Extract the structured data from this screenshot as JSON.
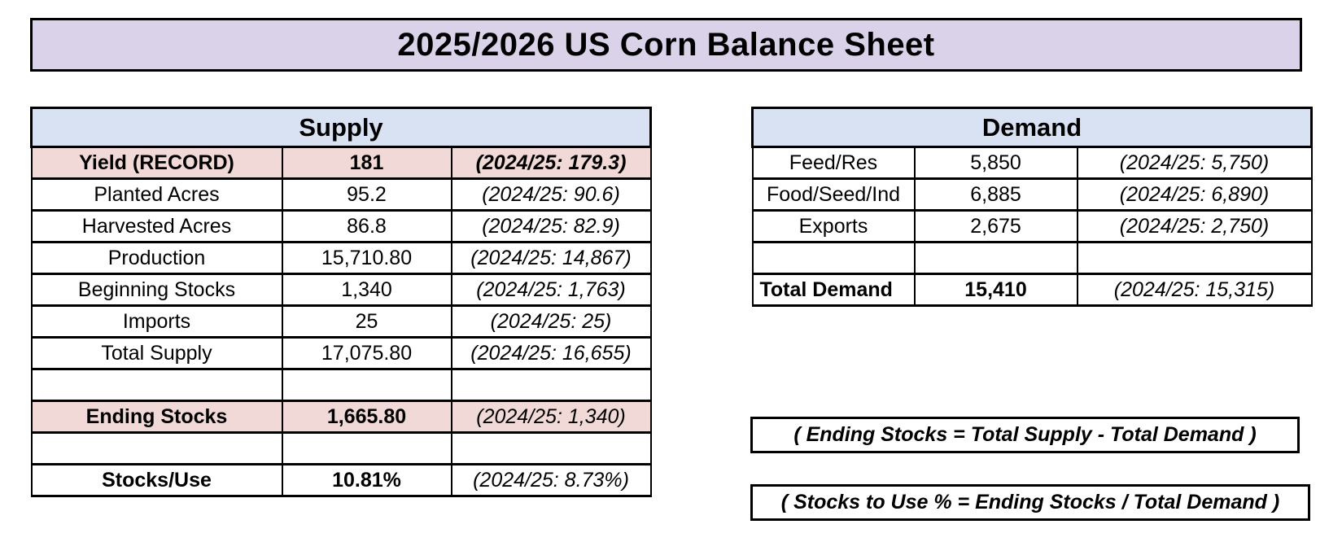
{
  "title": "2025/2026 US Corn Balance Sheet",
  "colors": {
    "title_bg": "#D9D2E9",
    "header_bg": "#D9E2F3",
    "highlight_bg": "#F0D9D6",
    "border_color": "#000000"
  },
  "supply": {
    "header": "Supply",
    "rows": [
      {
        "label": "Yield (RECORD)",
        "value": "181",
        "prior": "(2024/25: 179.3)",
        "highlight": true,
        "bold": true,
        "prior_bold": true
      },
      {
        "label": "Planted Acres",
        "value": "95.2",
        "prior": "(2024/25: 90.6)"
      },
      {
        "label": "Harvested Acres",
        "value": "86.8",
        "prior": "(2024/25: 82.9)"
      },
      {
        "label": "Production",
        "value": "15,710.80",
        "prior": "(2024/25: 14,867)"
      },
      {
        "label": "Beginning Stocks",
        "value": "1,340",
        "prior": "(2024/25: 1,763)"
      },
      {
        "label": "Imports",
        "value": "25",
        "prior": "(2024/25: 25)"
      },
      {
        "label": "Total Supply",
        "value": "17,075.80",
        "prior": "(2024/25: 16,655)"
      },
      {
        "label": "",
        "value": "",
        "prior": ""
      },
      {
        "label": "Ending Stocks",
        "value": "1,665.80",
        "prior": "(2024/25: 1,340)",
        "highlight": true,
        "bold": true
      },
      {
        "label": "",
        "value": "",
        "prior": ""
      },
      {
        "label": "Stocks/Use",
        "value": "10.81%",
        "prior": "(2024/25: 8.73%)",
        "bold": true
      }
    ]
  },
  "demand": {
    "header": "Demand",
    "rows": [
      {
        "label": "Feed/Res",
        "value": "5,850",
        "prior": "(2024/25: 5,750)"
      },
      {
        "label": "Food/Seed/Ind",
        "value": "6,885",
        "prior": "(2024/25: 6,890)"
      },
      {
        "label": "Exports",
        "value": "2,675",
        "prior": "(2024/25: 2,750)"
      },
      {
        "label": "",
        "value": "",
        "prior": ""
      },
      {
        "label": "Total Demand",
        "value": "15,410",
        "prior": "(2024/25: 15,315)",
        "bold": true,
        "label_left": true
      }
    ]
  },
  "notes": {
    "ending_stocks_formula": "( Ending Stocks = Total Supply - Total Demand )",
    "stocks_to_use_formula": "( Stocks to Use % = Ending Stocks / Total Demand )"
  }
}
